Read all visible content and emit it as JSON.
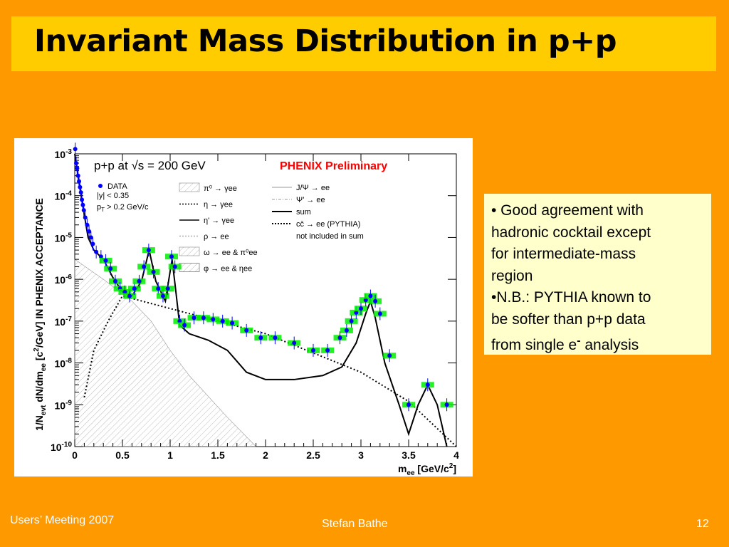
{
  "slide": {
    "title": "Invariant Mass Distribution in p+p",
    "footer_left": "Users’ Meeting 2007",
    "footer_center": "Stefan Bathe",
    "footer_right": "12",
    "colors": {
      "background": "#FF9900",
      "title_bar": "#FFCC00",
      "note_box": "#FFFFCC",
      "footer_text": "#FFFFFF"
    }
  },
  "notes": {
    "lines": [
      "• Good agreement  with",
      "hadronic cocktail except",
      "for intermediate-mass",
      "region",
      "•N.B.:  PYTHIA known to",
      "be softer than p+p data",
      "from single e",
      " analysis"
    ],
    "superscript": "-"
  },
  "chart_data": {
    "type": "scatter",
    "annotation_left": "p+p at √s = 200 GeV",
    "annotation_right": "PHENIX Preliminary",
    "xlabel": "m",
    "xlabel_sub": "ee",
    "xlabel_unit": " [GeV/c",
    "xlabel_sup": "2",
    "xlabel_close": "]",
    "ylabel": "1/N",
    "ylabel_sub1": "evt",
    "ylabel_mid": " dN/dm",
    "ylabel_sub2": "ee",
    "ylabel_unit": " [c",
    "ylabel_sup": "2",
    "ylabel_rest": "/GeV] IN PHENIX ACCEPTANCE",
    "xlim": [
      0,
      4
    ],
    "ylim": [
      1e-10,
      0.001
    ],
    "y_scale": "log",
    "x_tick_labels": [
      "0",
      "0.5",
      "1",
      "1.5",
      "2",
      "2.5",
      "3",
      "3.5",
      "4"
    ],
    "y_tick_base": "10",
    "y_tick_exponents": [
      "-3",
      "-4",
      "-5",
      "-6",
      "-7",
      "-8",
      "-9",
      "-10"
    ],
    "legend_data": {
      "label": "DATA",
      "cut1": "|y| < 0.35",
      "cut2": "p",
      "cut2_sub": "T",
      "cut2_rest": " > 0.2 GeV/c"
    },
    "legend_mid": [
      "π⁰ → γee",
      "η → γee",
      "η' → γee",
      "ρ → ee",
      "ω → ee & π⁰ee",
      "φ → ee & ηee"
    ],
    "legend_right": [
      "J/Ψ → ee",
      "Ψ' → ee",
      "sum",
      "cc̄ → ee (PYTHIA)",
      "not included in sum"
    ],
    "colors": {
      "data_points": "#0000FF",
      "syst_boxes": "#00EE00",
      "annotation_right": "#FF0000"
    },
    "series": [
      {
        "name": "DATA",
        "points": [
          [
            0.005,
            0.0013
          ],
          [
            0.015,
            0.0006
          ],
          [
            0.025,
            0.00045
          ],
          [
            0.035,
            0.0003
          ],
          [
            0.045,
            0.00022
          ],
          [
            0.055,
            0.00016
          ],
          [
            0.065,
            0.00012
          ],
          [
            0.075,
            8e-05
          ],
          [
            0.085,
            6e-05
          ],
          [
            0.095,
            4.5e-05
          ],
          [
            0.11,
            3e-05
          ],
          [
            0.13,
            2e-05
          ],
          [
            0.15,
            1.4e-05
          ],
          [
            0.17,
            1e-05
          ],
          [
            0.19,
            7e-06
          ],
          [
            0.225,
            4.5e-06
          ],
          [
            0.275,
            3.5e-06
          ],
          [
            0.325,
            2.8e-06
          ],
          [
            0.375,
            1.8e-06
          ],
          [
            0.425,
            9e-07
          ],
          [
            0.475,
            6e-07
          ],
          [
            0.525,
            5e-07
          ],
          [
            0.575,
            4e-07
          ],
          [
            0.625,
            6e-07
          ],
          [
            0.675,
            9e-07
          ],
          [
            0.725,
            2e-06
          ],
          [
            0.775,
            5e-06
          ],
          [
            0.825,
            1.5e-06
          ],
          [
            0.875,
            6e-07
          ],
          [
            0.925,
            4e-07
          ],
          [
            0.975,
            6e-07
          ],
          [
            1.015,
            3.5e-06
          ],
          [
            1.05,
            2e-06
          ],
          [
            1.1,
            1e-07
          ],
          [
            1.15,
            8e-08
          ],
          [
            1.25,
            1.2e-07
          ],
          [
            1.35,
            1.2e-07
          ],
          [
            1.45,
            1.1e-07
          ],
          [
            1.55,
            1e-07
          ],
          [
            1.65,
            9e-08
          ],
          [
            1.8,
            6e-08
          ],
          [
            1.95,
            4e-08
          ],
          [
            2.1,
            4e-08
          ],
          [
            2.3,
            3e-08
          ],
          [
            2.5,
            2e-08
          ],
          [
            2.65,
            2e-08
          ],
          [
            2.78,
            4e-08
          ],
          [
            2.85,
            6e-08
          ],
          [
            2.9,
            1e-07
          ],
          [
            2.95,
            1.6e-07
          ],
          [
            3.0,
            2e-07
          ],
          [
            3.05,
            3.2e-07
          ],
          [
            3.1,
            4e-07
          ],
          [
            3.15,
            3e-07
          ],
          [
            3.2,
            1.5e-07
          ],
          [
            3.3,
            1.5e-08
          ],
          [
            3.5,
            1e-09
          ],
          [
            3.7,
            3e-09
          ],
          [
            3.9,
            1e-09
          ]
        ]
      },
      {
        "name": "sum",
        "points": [
          [
            0.0,
            0.001
          ],
          [
            0.02,
            0.0005
          ],
          [
            0.05,
            0.00017
          ],
          [
            0.1,
            3.5e-05
          ],
          [
            0.14,
            1e-05
          ],
          [
            0.2,
            5e-06
          ],
          [
            0.3,
            3e-06
          ],
          [
            0.4,
            1.1e-06
          ],
          [
            0.5,
            5e-07
          ],
          [
            0.6,
            4e-07
          ],
          [
            0.7,
            9e-07
          ],
          [
            0.78,
            5e-06
          ],
          [
            0.85,
            9e-07
          ],
          [
            0.95,
            3e-07
          ],
          [
            1.02,
            3e-06
          ],
          [
            1.05,
            8e-07
          ],
          [
            1.1,
            8e-08
          ],
          [
            1.2,
            5e-08
          ],
          [
            1.4,
            3.5e-08
          ],
          [
            1.6,
            2e-08
          ],
          [
            1.8,
            6e-09
          ],
          [
            2.0,
            4e-09
          ],
          [
            2.3,
            4e-09
          ],
          [
            2.6,
            5e-09
          ],
          [
            2.8,
            8e-09
          ],
          [
            2.95,
            3e-08
          ],
          [
            3.05,
            1.5e-07
          ],
          [
            3.1,
            3e-07
          ],
          [
            3.15,
            1.2e-07
          ],
          [
            3.25,
            1e-08
          ],
          [
            3.4,
            1e-09
          ],
          [
            3.5,
            2e-10
          ],
          [
            3.6,
            1e-09
          ],
          [
            3.7,
            3e-09
          ],
          [
            3.8,
            1e-09
          ],
          [
            3.9,
            1e-10
          ]
        ]
      },
      {
        "name": "cc̄ → ee (PYTHIA)",
        "points": [
          [
            0.1,
            1.5e-09
          ],
          [
            0.2,
            2e-08
          ],
          [
            0.35,
            1e-07
          ],
          [
            0.5,
            4e-07
          ],
          [
            1.0,
            2e-07
          ],
          [
            2.0,
            5e-08
          ],
          [
            3.0,
            6e-09
          ],
          [
            3.5,
            1.2e-09
          ],
          [
            4.0,
            1e-10
          ]
        ]
      }
    ]
  }
}
